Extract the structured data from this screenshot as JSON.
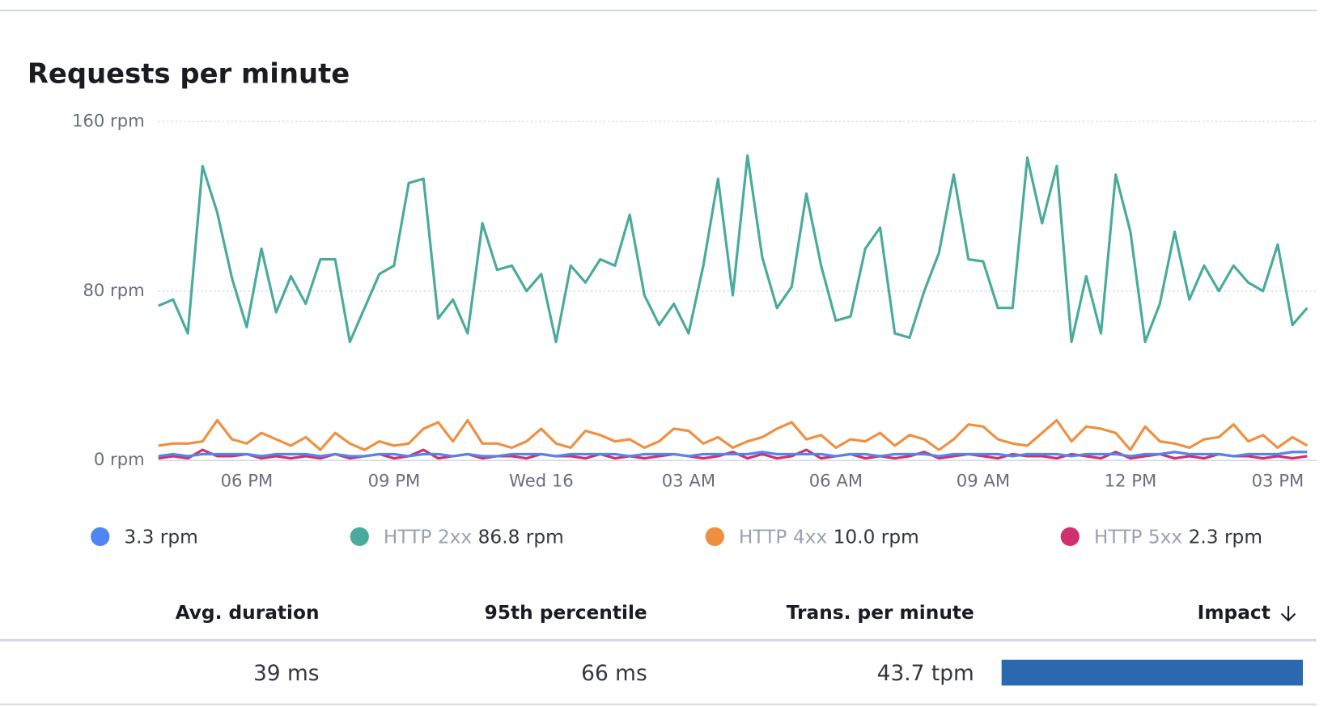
{
  "chart_data": {
    "type": "line",
    "title": "Requests per minute",
    "x": [
      16.2,
      16.5,
      16.8,
      17.1,
      17.4,
      17.7,
      18,
      18.3,
      18.6,
      18.9,
      19.2,
      19.5,
      19.8,
      20.1,
      20.4,
      20.7,
      21,
      21.3,
      21.6,
      21.9,
      22.2,
      22.5,
      22.8,
      23.1,
      23.4,
      23.7,
      24,
      24.3,
      24.6,
      24.9,
      25.2,
      25.5,
      25.8,
      26.1,
      26.4,
      26.7,
      27,
      27.3,
      27.6,
      27.9,
      28.2,
      28.5,
      28.8,
      29.1,
      29.4,
      29.7,
      30,
      30.3,
      30.6,
      30.9,
      31.2,
      31.5,
      31.8,
      32.1,
      32.4,
      32.7,
      33,
      33.3,
      33.6,
      33.9,
      34.2,
      34.5,
      34.8,
      35.1,
      35.4,
      35.7,
      36,
      36.3,
      36.6,
      36.9,
      37.2,
      37.5,
      37.8,
      38.1,
      38.4,
      38.7,
      39,
      39.3,
      39.6
    ],
    "xlim": [
      16.2,
      39.6
    ],
    "xticks": [
      {
        "value": 18,
        "label": "06 PM"
      },
      {
        "value": 21,
        "label": "09 PM"
      },
      {
        "value": 24,
        "label": "Wed 16"
      },
      {
        "value": 27,
        "label": "03 AM"
      },
      {
        "value": 30,
        "label": "06 AM"
      },
      {
        "value": 33,
        "label": "09 AM"
      },
      {
        "value": 36,
        "label": "12 PM"
      },
      {
        "value": 39,
        "label": "03 PM"
      }
    ],
    "ylim": [
      0,
      160
    ],
    "yticks": [
      {
        "value": 0,
        "label": "0 rpm"
      },
      {
        "value": 80,
        "label": "80 rpm"
      },
      {
        "value": 160,
        "label": "160 rpm"
      }
    ],
    "grid": true,
    "series": [
      {
        "color": "#4f86f0",
        "legend_value": {
          "value": 3.3,
          "label": "3.3 rpm"
        },
        "values": [
          2,
          3,
          2,
          3,
          3,
          3,
          3,
          2,
          3,
          3,
          3,
          2,
          3,
          2,
          2,
          3,
          3,
          2,
          3,
          3,
          2,
          3,
          2,
          2,
          3,
          3,
          3,
          2,
          3,
          3,
          3,
          3,
          2,
          3,
          3,
          3,
          2,
          3,
          3,
          3,
          3,
          4,
          3,
          3,
          3,
          3,
          2,
          3,
          3,
          2,
          3,
          3,
          3,
          2,
          3,
          3,
          3,
          3,
          2,
          3,
          3,
          3,
          2,
          3,
          3,
          3,
          2,
          3,
          3,
          4,
          3,
          3,
          3,
          2,
          3,
          3,
          3,
          4,
          4
        ]
      },
      {
        "name": "HTTP 2xx",
        "color": "#4aab9c",
        "legend_value": {
          "value": 86.8,
          "label": "86.8 rpm"
        },
        "values": [
          73,
          76,
          60,
          139,
          117,
          86,
          63,
          100,
          70,
          87,
          74,
          95,
          95,
          56,
          72,
          88,
          92,
          131,
          133,
          67,
          76,
          60,
          112,
          90,
          92,
          80,
          88,
          56,
          92,
          84,
          95,
          92,
          116,
          78,
          64,
          74,
          60,
          92,
          133,
          78,
          144,
          96,
          72,
          82,
          126,
          92,
          66,
          68,
          100,
          110,
          60,
          58,
          80,
          98,
          135,
          95,
          94,
          72,
          72,
          143,
          112,
          139,
          56,
          87,
          60,
          135,
          108,
          56,
          74,
          108,
          76,
          92,
          80,
          92,
          84,
          80,
          102,
          64,
          72
        ]
      },
      {
        "name": "HTTP 4xx",
        "color": "#ef9040",
        "legend_value": {
          "value": 10.0,
          "label": "10.0 rpm"
        },
        "values": [
          7,
          8,
          8,
          9,
          19,
          10,
          8,
          13,
          10,
          7,
          11,
          5,
          13,
          8,
          5,
          9,
          7,
          8,
          15,
          18,
          9,
          19,
          8,
          8,
          6,
          9,
          15,
          8,
          6,
          14,
          12,
          9,
          10,
          6,
          9,
          15,
          14,
          8,
          11,
          6,
          9,
          11,
          15,
          18,
          10,
          12,
          6,
          10,
          9,
          13,
          7,
          12,
          10,
          5,
          10,
          17,
          16,
          10,
          8,
          7,
          13,
          19,
          9,
          16,
          15,
          13,
          5,
          16,
          9,
          8,
          6,
          10,
          11,
          17,
          9,
          12,
          6,
          11,
          7
        ]
      },
      {
        "name": "HTTP 5xx",
        "color": "#d0306e",
        "legend_value": {
          "value": 2.3,
          "label": "2.3 rpm"
        },
        "values": [
          1,
          2,
          1,
          5,
          2,
          2,
          3,
          1,
          2,
          1,
          2,
          1,
          3,
          1,
          2,
          3,
          1,
          2,
          5,
          1,
          2,
          3,
          1,
          2,
          2,
          1,
          3,
          2,
          2,
          1,
          3,
          1,
          2,
          1,
          2,
          3,
          2,
          1,
          2,
          4,
          1,
          3,
          1,
          2,
          5,
          1,
          2,
          3,
          1,
          2,
          1,
          2,
          4,
          1,
          2,
          3,
          2,
          1,
          3,
          2,
          2,
          1,
          3,
          2,
          1,
          4,
          1,
          2,
          3,
          1,
          2,
          1,
          3,
          2,
          2,
          1,
          2,
          1,
          2
        ]
      }
    ]
  },
  "table": {
    "headers": [
      "Avg. duration",
      "95th percentile",
      "Trans. per minute",
      "Impact"
    ],
    "rows": [
      {
        "cells": [
          "39 ms",
          "66 ms",
          "43.7 tpm"
        ],
        "impact": 100
      }
    ],
    "impact_color": "#2a68b0"
  }
}
